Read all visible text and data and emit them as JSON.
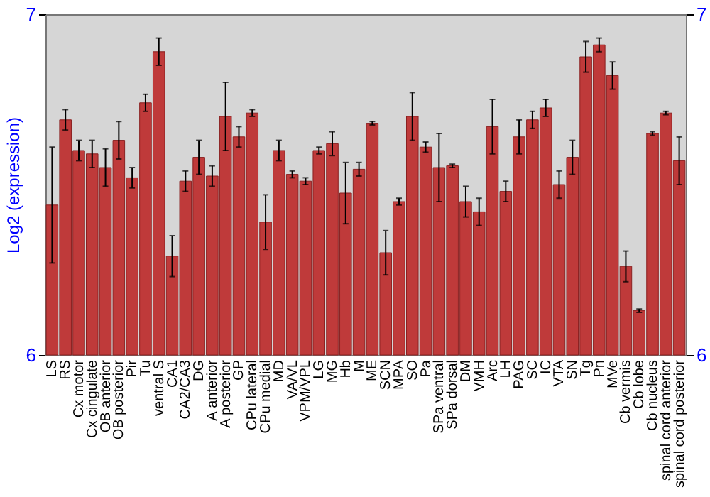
{
  "chart_data": {
    "type": "bar",
    "ylabel": "Log2 (expression)",
    "categories": [
      "LS",
      "RS",
      "Cx motor",
      "Cx cingulate",
      "OB anterior",
      "OB posterior",
      "Pir",
      "Tu",
      "ventral S",
      "CA1",
      "CA2/CA3",
      "DG",
      "A anterior",
      "A posterior",
      "GP",
      "CPu lateral",
      "CPu medial",
      "MD",
      "VA/VL",
      "VPM/VPL",
      "LG",
      "MG",
      "Hb",
      "M",
      "ME",
      "SCN",
      "MPA",
      "SO",
      "Pa",
      "SPa ventral",
      "SPa dorsal",
      "DM",
      "VMH",
      "Arc",
      "LH",
      "PAG",
      "SC",
      "IC",
      "VTA",
      "SN",
      "Tg",
      "Pn",
      "MVe",
      "Cb vermis",
      "Cb lobe",
      "Cb nucleus",
      "spinal cord anterior",
      "spinal cord posterior"
    ],
    "series": [
      {
        "color": "#bf3a3a",
        "values": [
          6.44,
          6.69,
          6.6,
          6.59,
          6.55,
          6.63,
          6.52,
          6.74,
          6.89,
          6.29,
          6.51,
          6.58,
          6.525,
          6.7,
          6.64,
          6.71,
          6.39,
          6.6,
          6.53,
          6.51,
          6.6,
          6.62,
          6.475,
          6.545,
          6.68,
          6.3,
          6.45,
          6.7,
          6.61,
          6.55,
          6.555,
          6.45,
          6.42,
          6.67,
          6.48,
          6.64,
          6.69,
          6.725,
          6.5,
          6.58,
          6.875,
          6.91,
          6.82,
          6.26,
          6.13,
          6.65,
          6.71,
          6.57
        ],
        "errors": [
          0.17,
          0.03,
          0.03,
          0.04,
          0.055,
          0.055,
          0.03,
          0.025,
          0.04,
          0.06,
          0.03,
          0.05,
          0.03,
          0.1,
          0.03,
          0.01,
          0.08,
          0.03,
          0.01,
          0.01,
          0.01,
          0.035,
          0.09,
          0.02,
          0.005,
          0.065,
          0.01,
          0.07,
          0.015,
          0.1,
          0.005,
          0.045,
          0.04,
          0.08,
          0.03,
          0.05,
          0.025,
          0.025,
          0.04,
          0.05,
          0.045,
          0.02,
          0.04,
          0.045,
          0.005,
          0.005,
          0.005,
          0.07
        ]
      }
    ],
    "ylim": [
      6,
      7
    ],
    "yticks": [
      6,
      7
    ],
    "y2lim": [
      6,
      7
    ],
    "y2ticks": [
      6,
      7
    ],
    "grid": false
  }
}
